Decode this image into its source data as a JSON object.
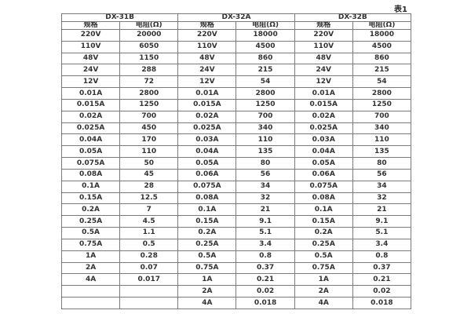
{
  "caption": "表1",
  "table": {
    "groups": [
      {
        "label": "DX-31B"
      },
      {
        "label": "DX-32A"
      },
      {
        "label": "DX-32B"
      }
    ],
    "subheaders": {
      "spec": "规格",
      "resistance": "电阻(Ω)"
    },
    "rows": [
      [
        "220V",
        "20000",
        "220V",
        "18000",
        "220V",
        "18000"
      ],
      [
        "110V",
        "6050",
        "110V",
        "4500",
        "110V",
        "4500"
      ],
      [
        "48V",
        "1150",
        "48V",
        "860",
        "48V",
        "860"
      ],
      [
        "24V",
        "288",
        "24V",
        "215",
        "24V",
        "215"
      ],
      [
        "12V",
        "72",
        "12V",
        "54",
        "12V",
        "54"
      ],
      [
        "0.01A",
        "2800",
        "0.01A",
        "2800",
        "0.01A",
        "2800"
      ],
      [
        "0.015A",
        "1250",
        "0.015A",
        "1250",
        "0.015A",
        "1250"
      ],
      [
        "0.02A",
        "700",
        "0.02A",
        "700",
        "0.02A",
        "700"
      ],
      [
        "0.025A",
        "450",
        "0.025A",
        "340",
        "0.025A",
        "340"
      ],
      [
        "0.04A",
        "170",
        "0.03A",
        "110",
        "0.03A",
        "110"
      ],
      [
        "0.05A",
        "110",
        "0.04A",
        "135",
        "0.04A",
        "135"
      ],
      [
        "0.075A",
        "50",
        "0.05A",
        "80",
        "0.05A",
        "80"
      ],
      [
        "0.08A",
        "45",
        "0.06A",
        "56",
        "0.06A",
        "56"
      ],
      [
        "0.1A",
        "28",
        "0.075A",
        "34",
        "0.075A",
        "34"
      ],
      [
        "0.15A",
        "12.5",
        "0.08A",
        "32",
        "0.08A",
        "32"
      ],
      [
        "0.2A",
        "7",
        "0.1A",
        "21",
        "0.1A",
        "21"
      ],
      [
        "0.25A",
        "4.5",
        "0.15A",
        "9.1",
        "0.15A",
        "9.1"
      ],
      [
        "0.5A",
        "1.1",
        "0.2A",
        "5.1",
        "0.2A",
        "5.1"
      ],
      [
        "0.75A",
        "0.5",
        "0.25A",
        "3.4",
        "0.25A",
        "3.4"
      ],
      [
        "1A",
        "0.28",
        "0.5A",
        "0.8",
        "0.5A",
        "0.8"
      ],
      [
        "2A",
        "0.07",
        "0.75A",
        "0.37",
        "0.75A",
        "0.37"
      ],
      [
        "4A",
        "0.017",
        "1A",
        "0.21",
        "1A",
        "0.21"
      ],
      [
        "",
        "",
        "2A",
        "0.02",
        "2A",
        "0.02"
      ],
      [
        "",
        "",
        "4A",
        "0.018",
        "4A",
        "0.018"
      ]
    ]
  },
  "colors": {
    "border": "#7a7a7a",
    "text": "#333333",
    "background": "#ffffff"
  }
}
